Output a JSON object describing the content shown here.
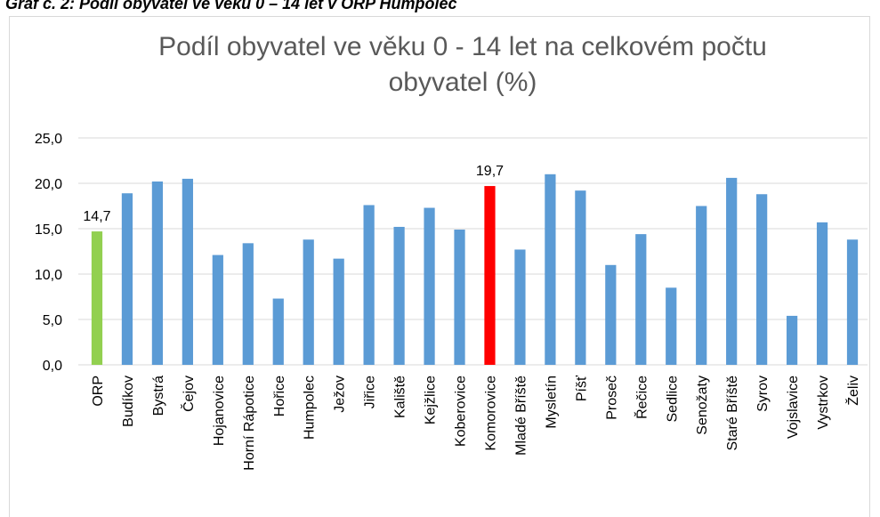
{
  "chart_data": {
    "type": "bar",
    "caption": "Graf č. 2: Podíl obyvatel ve věku 0 – 14 let v ORP Humpolec",
    "title": "Podíl obyvatel ve věku 0 - 14 let na celkovém počtu obyvatel (%)",
    "categories": [
      "ORP",
      "Budíkov",
      "Bystrá",
      "Čejov",
      "Hojanovice",
      "Horní Rápotice",
      "Hořice",
      "Humpolec",
      "Ježov",
      "Jiřice",
      "Kaliště",
      "Kejžlice",
      "Koberovice",
      "Komorovice",
      "Mladé Bříště",
      "Mysletín",
      "Píšť",
      "Proseč",
      "Řečice",
      "Sedlice",
      "Senožaty",
      "Staré Bříště",
      "Syrov",
      "Vojslavice",
      "Vystrkov",
      "Želiv"
    ],
    "values": [
      14.7,
      18.9,
      20.2,
      20.5,
      12.1,
      13.4,
      7.3,
      13.8,
      11.7,
      17.6,
      15.2,
      17.3,
      14.9,
      19.7,
      12.7,
      21.0,
      19.2,
      11.0,
      14.4,
      8.5,
      17.5,
      20.6,
      18.8,
      5.4,
      15.7,
      13.8
    ],
    "value_labels": [
      "14,7",
      null,
      null,
      null,
      null,
      null,
      null,
      null,
      null,
      null,
      null,
      null,
      null,
      "19,7",
      null,
      null,
      null,
      null,
      null,
      null,
      null,
      null,
      null,
      null,
      null,
      null
    ],
    "colors": [
      "#92d050",
      "#5b9bd5",
      "#5b9bd5",
      "#5b9bd5",
      "#5b9bd5",
      "#5b9bd5",
      "#5b9bd5",
      "#5b9bd5",
      "#5b9bd5",
      "#5b9bd5",
      "#5b9bd5",
      "#5b9bd5",
      "#5b9bd5",
      "#ff0000",
      "#5b9bd5",
      "#5b9bd5",
      "#5b9bd5",
      "#5b9bd5",
      "#5b9bd5",
      "#5b9bd5",
      "#5b9bd5",
      "#5b9bd5",
      "#5b9bd5",
      "#5b9bd5",
      "#5b9bd5",
      "#5b9bd5"
    ],
    "ylim": [
      0,
      25
    ],
    "yticks": [
      {
        "value": 0,
        "label": "0,0"
      },
      {
        "value": 5,
        "label": "5,0"
      },
      {
        "value": 10,
        "label": "10,0"
      },
      {
        "value": 15,
        "label": "15,0"
      },
      {
        "value": 20,
        "label": "20,0"
      },
      {
        "value": 25,
        "label": "25,0"
      }
    ],
    "grid": true
  }
}
